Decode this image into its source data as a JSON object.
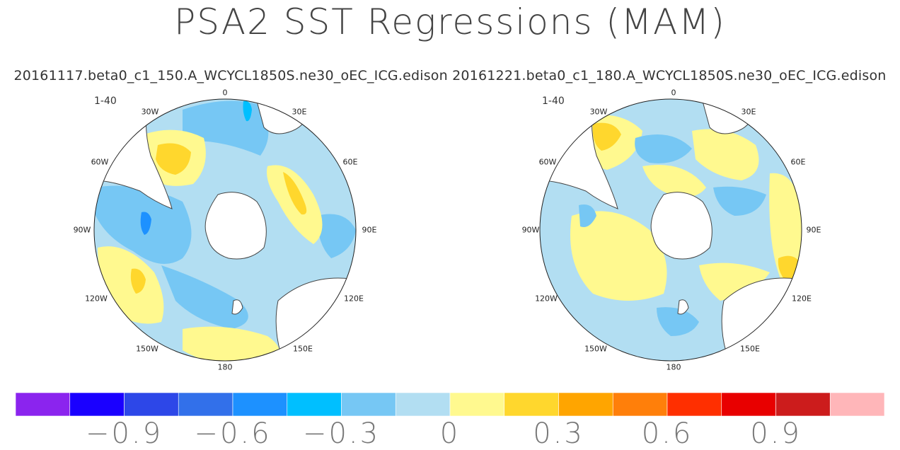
{
  "chart_data": {
    "type": "map",
    "title": "PSA2 SST Regressions (MAM)",
    "subtitle": "20161117.beta0_c1_150.A_WCYCL1850S.ne30_oEC_ICG.edison 20161221.beta0_c1_180.A_WCYCL1850S.ne30_oEC_ICG.edison",
    "projection": "south-polar-stereographic",
    "panels": [
      {
        "name": "20161117.beta0_c1_150.A_WCYCL1850S.ne30_oEC_ICG.edison",
        "label": "1-40",
        "lon_labels": [
          "0",
          "30E",
          "60E",
          "90E",
          "120E",
          "150E",
          "180",
          "150W",
          "120W",
          "90W",
          "60W",
          "30W"
        ]
      },
      {
        "name": "20161221.beta0_c1_180.A_WCYCL1850S.ne30_oEC_ICG.edison",
        "label": "1-40",
        "lon_labels": [
          "0",
          "30E",
          "60E",
          "90E",
          "120E",
          "150E",
          "180",
          "150W",
          "120W",
          "90W",
          "60W",
          "30W"
        ]
      }
    ],
    "colorbar": {
      "colors": [
        "#8B24EE",
        "#1A00FF",
        "#2D47E8",
        "#3270EA",
        "#1D91FF",
        "#00BFFF",
        "#76C7F4",
        "#B2DEF2",
        "#FFF98F",
        "#FFD72D",
        "#FFA500",
        "#FF7F0A",
        "#FF2F00",
        "#E80000",
        "#CC1C1C",
        "#FFB6B9"
      ],
      "ticks": [
        "−0.9",
        "−0.6",
        "−0.3",
        "0",
        "0.3",
        "0.6",
        "0.9"
      ],
      "tick_values": [
        -0.9,
        -0.6,
        -0.3,
        0,
        0.3,
        0.6,
        0.9
      ],
      "range": [
        -1.2,
        1.2
      ]
    }
  }
}
